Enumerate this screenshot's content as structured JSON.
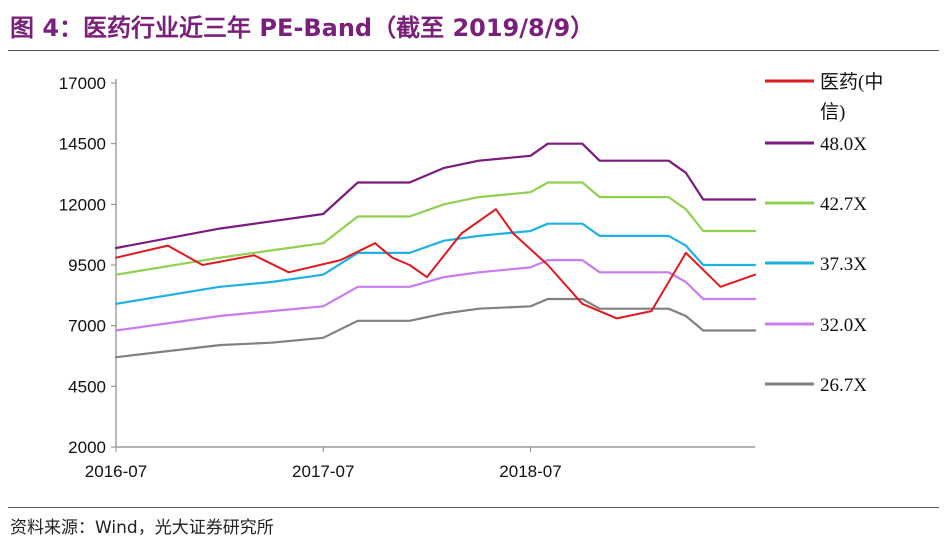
{
  "title": "图 4：医药行业近三年 PE-Band（截至 2019/8/9）",
  "source": "资料来源：Wind，光大证券研究所",
  "chart_data": {
    "type": "line",
    "title": "图 4：医药行业近三年 PE-Band（截至 2019/8/9）",
    "ylim": [
      2000,
      17000
    ],
    "y_ticks": [
      2000,
      4500,
      7000,
      9500,
      12000,
      14500,
      17000
    ],
    "x_ticks": [
      "2016-07",
      "2017-07",
      "2018-07"
    ],
    "x_range": [
      "2016-07",
      "2019-08"
    ],
    "grid": false,
    "legend_position": "right",
    "colors": {
      "index": "#e0191f",
      "pe48": "#7b1a7f",
      "pe42_7": "#92d050",
      "pe37_3": "#1fb0e6",
      "pe32": "#c77cf2",
      "pe26_7": "#808080"
    },
    "series": [
      {
        "name": "医药(中信)",
        "key": "index",
        "points": [
          [
            "2016-07",
            9800
          ],
          [
            "2016-10",
            10300
          ],
          [
            "2016-12",
            9500
          ],
          [
            "2017-03",
            9900
          ],
          [
            "2017-05",
            9200
          ],
          [
            "2017-08",
            9700
          ],
          [
            "2017-10",
            10400
          ],
          [
            "2017-11",
            9800
          ],
          [
            "2017-12",
            9500
          ],
          [
            "2018-01",
            9000
          ],
          [
            "2018-03",
            10800
          ],
          [
            "2018-05",
            11800
          ],
          [
            "2018-06",
            10800
          ],
          [
            "2018-08",
            9500
          ],
          [
            "2018-10",
            7900
          ],
          [
            "2018-12",
            7300
          ],
          [
            "2019-02",
            7600
          ],
          [
            "2019-04",
            10000
          ],
          [
            "2019-06",
            8600
          ],
          [
            "2019-08",
            9100
          ]
        ]
      },
      {
        "name": "48.0X",
        "key": "pe48",
        "points": [
          [
            "2016-07",
            10200
          ],
          [
            "2017-01",
            11000
          ],
          [
            "2017-04",
            11300
          ],
          [
            "2017-07",
            11600
          ],
          [
            "2017-09",
            12900
          ],
          [
            "2017-12",
            12900
          ],
          [
            "2018-02",
            13500
          ],
          [
            "2018-04",
            13800
          ],
          [
            "2018-07",
            14000
          ],
          [
            "2018-08",
            14500
          ],
          [
            "2018-10",
            14500
          ],
          [
            "2018-11",
            13800
          ],
          [
            "2019-03",
            13800
          ],
          [
            "2019-04",
            13300
          ],
          [
            "2019-05",
            12200
          ],
          [
            "2019-08",
            12200
          ]
        ]
      },
      {
        "name": "42.7X",
        "key": "pe42_7",
        "points": [
          [
            "2016-07",
            9100
          ],
          [
            "2017-01",
            9800
          ],
          [
            "2017-04",
            10100
          ],
          [
            "2017-07",
            10400
          ],
          [
            "2017-09",
            11500
          ],
          [
            "2017-12",
            11500
          ],
          [
            "2018-02",
            12000
          ],
          [
            "2018-04",
            12300
          ],
          [
            "2018-07",
            12500
          ],
          [
            "2018-08",
            12900
          ],
          [
            "2018-10",
            12900
          ],
          [
            "2018-11",
            12300
          ],
          [
            "2019-03",
            12300
          ],
          [
            "2019-04",
            11800
          ],
          [
            "2019-05",
            10900
          ],
          [
            "2019-08",
            10900
          ]
        ]
      },
      {
        "name": "37.3X",
        "key": "pe37_3",
        "points": [
          [
            "2016-07",
            7900
          ],
          [
            "2017-01",
            8600
          ],
          [
            "2017-04",
            8800
          ],
          [
            "2017-07",
            9100
          ],
          [
            "2017-09",
            10000
          ],
          [
            "2017-12",
            10000
          ],
          [
            "2018-02",
            10500
          ],
          [
            "2018-04",
            10700
          ],
          [
            "2018-07",
            10900
          ],
          [
            "2018-08",
            11200
          ],
          [
            "2018-10",
            11200
          ],
          [
            "2018-11",
            10700
          ],
          [
            "2019-03",
            10700
          ],
          [
            "2019-04",
            10300
          ],
          [
            "2019-05",
            9500
          ],
          [
            "2019-08",
            9500
          ]
        ]
      },
      {
        "name": "32.0X",
        "key": "pe32",
        "points": [
          [
            "2016-07",
            6800
          ],
          [
            "2017-01",
            7400
          ],
          [
            "2017-04",
            7600
          ],
          [
            "2017-07",
            7800
          ],
          [
            "2017-09",
            8600
          ],
          [
            "2017-12",
            8600
          ],
          [
            "2018-02",
            9000
          ],
          [
            "2018-04",
            9200
          ],
          [
            "2018-07",
            9400
          ],
          [
            "2018-08",
            9700
          ],
          [
            "2018-10",
            9700
          ],
          [
            "2018-11",
            9200
          ],
          [
            "2019-03",
            9200
          ],
          [
            "2019-04",
            8800
          ],
          [
            "2019-05",
            8100
          ],
          [
            "2019-08",
            8100
          ]
        ]
      },
      {
        "name": "26.7X",
        "key": "pe26_7",
        "points": [
          [
            "2016-07",
            5700
          ],
          [
            "2017-01",
            6200
          ],
          [
            "2017-04",
            6300
          ],
          [
            "2017-07",
            6500
          ],
          [
            "2017-09",
            7200
          ],
          [
            "2017-12",
            7200
          ],
          [
            "2018-02",
            7500
          ],
          [
            "2018-04",
            7700
          ],
          [
            "2018-07",
            7800
          ],
          [
            "2018-08",
            8100
          ],
          [
            "2018-10",
            8100
          ],
          [
            "2018-11",
            7700
          ],
          [
            "2019-03",
            7700
          ],
          [
            "2019-04",
            7400
          ],
          [
            "2019-05",
            6800
          ],
          [
            "2019-08",
            6800
          ]
        ]
      }
    ]
  }
}
